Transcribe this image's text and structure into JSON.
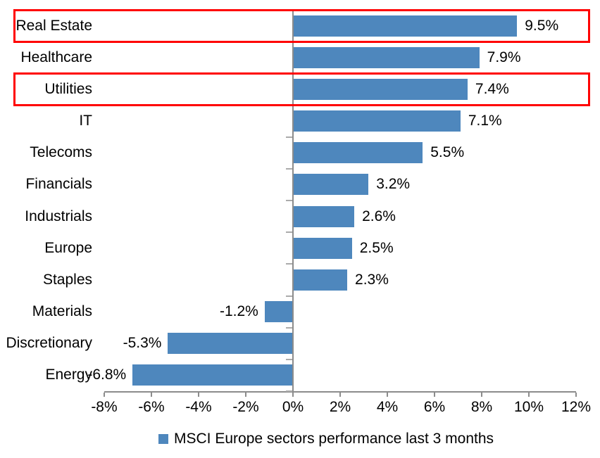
{
  "chart_data": {
    "type": "bar",
    "orientation": "horizontal",
    "title": "",
    "categories": [
      "Real Estate",
      "Healthcare",
      "Utilities",
      "IT",
      "Telecoms",
      "Financials",
      "Industrials",
      "Europe",
      "Staples",
      "Materials",
      "Discretionary",
      "Energy"
    ],
    "values": [
      9.5,
      7.9,
      7.4,
      7.1,
      5.5,
      3.2,
      2.6,
      2.5,
      2.3,
      -1.2,
      -5.3,
      -6.8
    ],
    "data_labels": [
      "9.5%",
      "7.9%",
      "7.4%",
      "7.1%",
      "5.5%",
      "3.2%",
      "2.6%",
      "2.5%",
      "2.3%",
      "-1.2%",
      "-5.3%",
      "-6.8%"
    ],
    "x_ticks": [
      "-8%",
      "-6%",
      "-4%",
      "-2%",
      "0%",
      "2%",
      "4%",
      "6%",
      "8%",
      "10%",
      "12%"
    ],
    "x_tick_values": [
      -8,
      -6,
      -4,
      -2,
      0,
      2,
      4,
      6,
      8,
      10,
      12
    ],
    "xlim": [
      -8,
      12
    ],
    "grid": false,
    "legend_position": "bottom",
    "legend_label": "MSCI Europe sectors performance last 3 months",
    "bar_color": "#4e87bd",
    "axis_color": "#8c8c8c",
    "category_tick_color": "#ababab",
    "highlight_color": "#ff0000",
    "highlighted_indices": [
      0,
      2
    ],
    "highlighted_categories": [
      "Real Estate",
      "Utilities"
    ]
  }
}
